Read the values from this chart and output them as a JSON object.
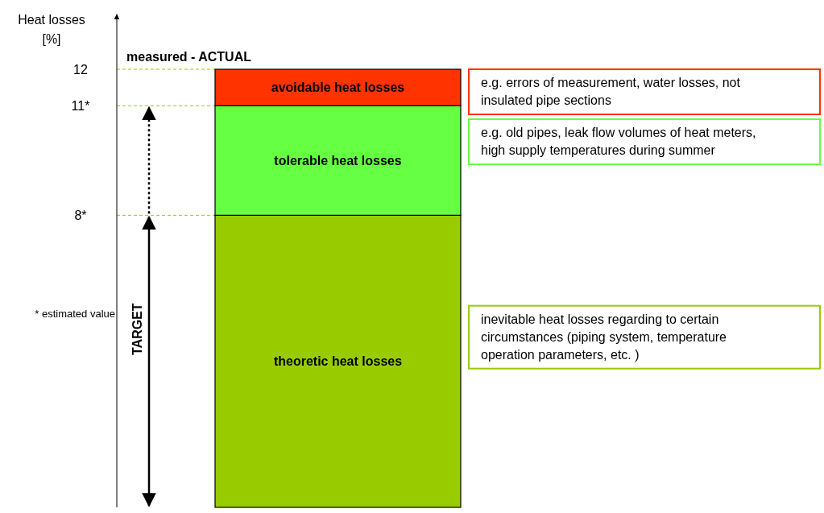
{
  "chart_data": {
    "type": "bar",
    "stacked": true,
    "ylabel": "Heat losses [%]",
    "categories": [
      null
    ],
    "series": [
      {
        "name": "theoretic heat losses",
        "color": "#99cc00",
        "values": [
          8
        ]
      },
      {
        "name": "tolerable heat losses",
        "color": "#66ff44",
        "values": [
          3
        ]
      },
      {
        "name": "avoidable heat losses",
        "color": "#ff3300",
        "values": [
          1
        ]
      }
    ],
    "ylim": [
      0,
      13.5
    ],
    "yticks": [
      {
        "value": 8,
        "label": "8*"
      },
      {
        "value": 11,
        "label": "11*"
      },
      12
    ],
    "tick_labels": "y",
    "annotations": [
      "measured - ACTUAL",
      "* estimated value",
      "TARGET",
      "e.g. errors of measurement, water losses, not insulated pipe sections",
      "e.g. old pipes, leak flow volumes of heat meters, high supply temperatures during summer",
      "inevitable heat losses regarding to certain circumstances (piping system, temperature operation parameters, etc. )"
    ]
  }
}
